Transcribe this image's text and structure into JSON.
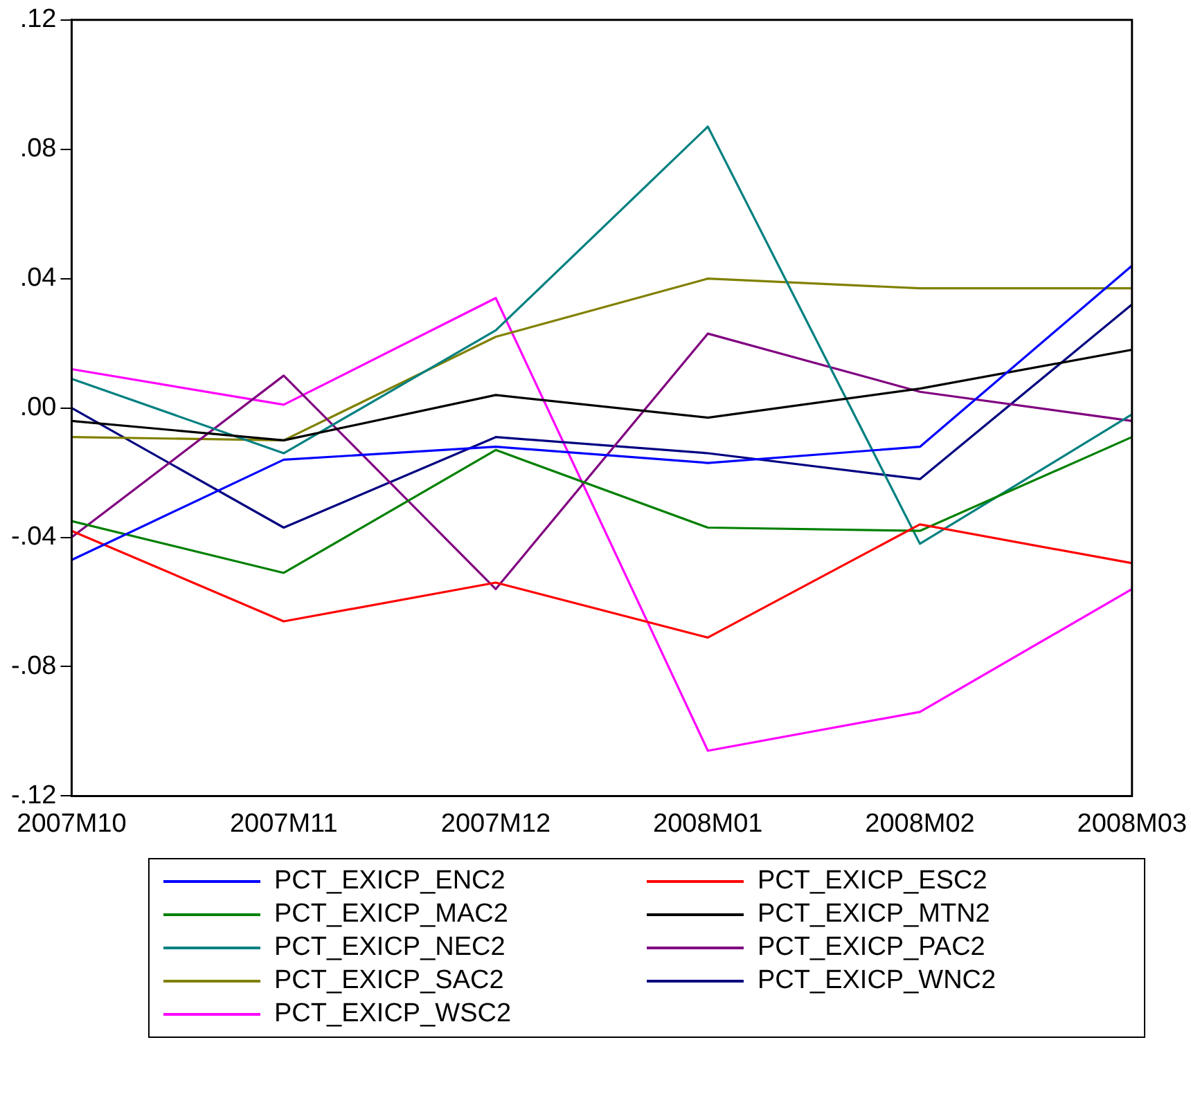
{
  "chart_data": {
    "type": "line",
    "categories": [
      "2007M10",
      "2007M11",
      "2007M12",
      "2008M01",
      "2008M02",
      "2008M03"
    ],
    "ylim": [
      -0.12,
      0.12
    ],
    "yticks": [
      {
        "value": -0.12,
        "label": "-.12"
      },
      {
        "value": -0.08,
        "label": "-.08"
      },
      {
        "value": -0.04,
        "label": "-.04"
      },
      {
        "value": 0,
        "label": ".00"
      },
      {
        "value": 0.04,
        "label": ".04"
      },
      {
        "value": 0.08,
        "label": ".08"
      },
      {
        "value": 0.12,
        "label": ".12"
      }
    ],
    "grid": false,
    "legend": "bottom",
    "marker": "none",
    "line_style": "solid",
    "series": [
      {
        "name": "PCT_EXICP_ENC2",
        "color": "#0000ff",
        "values": [
          -0.047,
          -0.016,
          -0.012,
          -0.017,
          -0.012,
          0.044
        ]
      },
      {
        "name": "PCT_EXICP_ESC2",
        "color": "#ff0000",
        "values": [
          -0.038,
          -0.066,
          -0.054,
          -0.071,
          -0.036,
          -0.048
        ]
      },
      {
        "name": "PCT_EXICP_MAC2",
        "color": "#008000",
        "values": [
          -0.035,
          -0.051,
          -0.013,
          -0.037,
          -0.038,
          -0.009
        ]
      },
      {
        "name": "PCT_EXICP_MTN2",
        "color": "#000000",
        "values": [
          -0.004,
          -0.01,
          0.004,
          -0.003,
          0.006,
          0.018
        ]
      },
      {
        "name": "PCT_EXICP_NEC2",
        "color": "#008080",
        "values": [
          0.009,
          -0.014,
          0.024,
          0.087,
          -0.042,
          -0.002
        ]
      },
      {
        "name": "PCT_EXICP_PAC2",
        "color": "#800080",
        "values": [
          -0.04,
          0.01,
          -0.056,
          0.023,
          0.005,
          -0.004
        ]
      },
      {
        "name": "PCT_EXICP_SAC2",
        "color": "#808000",
        "values": [
          -0.009,
          -0.01,
          0.022,
          0.04,
          0.037,
          0.037
        ]
      },
      {
        "name": "PCT_EXICP_WNC2",
        "color": "#000080",
        "values": [
          0.0,
          -0.037,
          -0.009,
          -0.014,
          -0.022,
          0.032
        ]
      },
      {
        "name": "PCT_EXICP_WSC2",
        "color": "#ff00ff",
        "values": [
          0.012,
          0.001,
          0.034,
          -0.106,
          -0.094,
          -0.056
        ]
      }
    ]
  }
}
